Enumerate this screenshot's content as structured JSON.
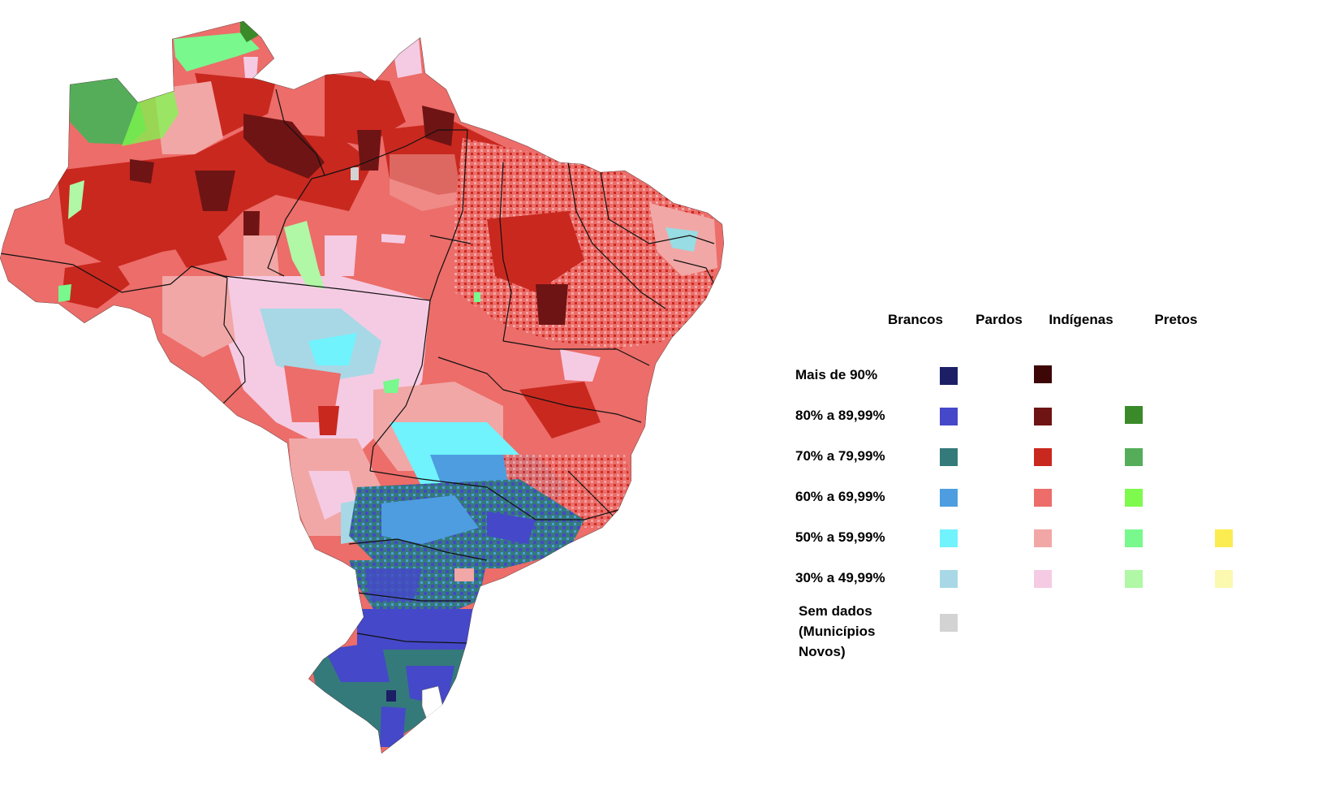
{
  "legend": {
    "columns": [
      {
        "id": "brancos",
        "label": "Brancos"
      },
      {
        "id": "pardos",
        "label": "Pardos"
      },
      {
        "id": "indigenas",
        "label": "Indígenas"
      },
      {
        "id": "pretos",
        "label": "Pretos"
      }
    ],
    "rows": [
      {
        "id": "r90",
        "label": "Mais de 90%"
      },
      {
        "id": "r80",
        "label": "80% a 89,99%"
      },
      {
        "id": "r70",
        "label": "70% a 79,99%"
      },
      {
        "id": "r60",
        "label": "60% a 69,99%"
      },
      {
        "id": "r50",
        "label": "50% a 59,99%"
      },
      {
        "id": "r30",
        "label": "30% a 49,99%"
      }
    ],
    "no_data": {
      "line1": "Sem dados",
      "line2": "(Municípios",
      "line3": "Novos)",
      "color": "#d3d3d3"
    },
    "colors": {
      "brancos": {
        "r90": "#1c1f66",
        "r80": "#4548c9",
        "r70": "#357a7a",
        "r60": "#4d9de0",
        "r50": "#70f3fd",
        "r30": "#a8d8e6"
      },
      "pardos": {
        "r90": "#3e0707",
        "r80": "#6f1414",
        "r70": "#c9281f",
        "r60": "#ec6d69",
        "r50": "#f1a7a6",
        "r30": "#f5cbe3"
      },
      "indigenas": {
        "r80": "#3a8a2a",
        "r70": "#55ad5a",
        "r60": "#7dfa4d",
        "r50": "#78f88d",
        "r30": "#b0f7a6"
      },
      "pretos": {
        "r50": "#fbec52",
        "r30": "#fbf8b0"
      }
    }
  }
}
